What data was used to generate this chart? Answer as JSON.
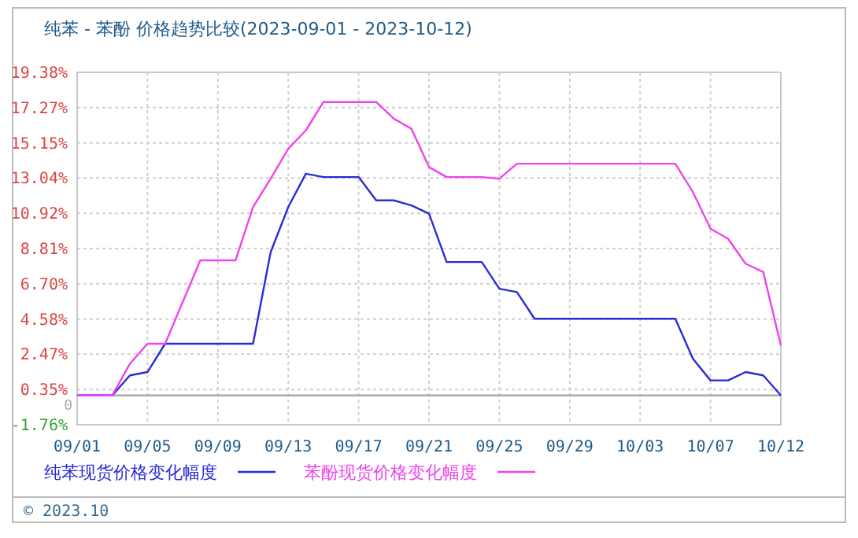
{
  "chart_data": {
    "type": "line",
    "title": "纯苯 - 苯酚 价格趋势比较(2023-09-01 - 2023-10-12)",
    "categories": [
      "09/01",
      null,
      null,
      null,
      "09/05",
      null,
      null,
      null,
      "09/09",
      null,
      null,
      null,
      "09/13",
      null,
      null,
      null,
      "09/17",
      null,
      null,
      null,
      "09/21",
      null,
      null,
      null,
      "09/25",
      null,
      null,
      null,
      "09/29",
      null,
      null,
      null,
      "10/03",
      null,
      null,
      null,
      "10/07",
      null,
      null,
      null,
      "10/12"
    ],
    "series": [
      {
        "name": "纯苯现货价格变化幅度",
        "color": "#2b2bd6",
        "values": [
          0,
          0,
          0,
          1.2,
          1.4,
          3.1,
          3.1,
          3.1,
          3.1,
          3.1,
          3.1,
          8.6,
          11.3,
          13.3,
          13.1,
          13.1,
          13.1,
          11.7,
          11.7,
          11.4,
          10.9,
          8.0,
          8.0,
          8.0,
          6.4,
          6.2,
          4.6,
          4.6,
          4.6,
          4.6,
          4.6,
          4.6,
          4.6,
          4.6,
          4.6,
          2.2,
          0.9,
          0.9,
          1.4,
          1.2,
          0
        ]
      },
      {
        "name": "苯酚现货价格变化幅度",
        "color": "#ee44ee",
        "values": [
          0,
          0,
          0,
          1.9,
          3.1,
          3.1,
          5.6,
          8.1,
          8.1,
          8.1,
          11.3,
          13.0,
          14.8,
          15.9,
          17.6,
          17.6,
          17.6,
          17.6,
          16.6,
          16.0,
          13.7,
          13.1,
          13.1,
          13.1,
          13.0,
          13.9,
          13.9,
          13.9,
          13.9,
          13.9,
          13.9,
          13.9,
          13.9,
          13.9,
          13.9,
          12.2,
          10.0,
          9.4,
          7.9,
          7.4,
          3.0
        ]
      }
    ],
    "ylim": [
      -1.76,
      19.38
    ],
    "yticks": [
      {
        "value": -1.76,
        "label": "-1.76%"
      },
      {
        "value": 0.35,
        "label": "0.35%"
      },
      {
        "value": 2.47,
        "label": "2.47%"
      },
      {
        "value": 4.58,
        "label": "4.58%"
      },
      {
        "value": 6.7,
        "label": "6.70%"
      },
      {
        "value": 8.81,
        "label": "8.81%"
      },
      {
        "value": 10.92,
        "label": "10.92%"
      },
      {
        "value": 13.04,
        "label": "13.04%"
      },
      {
        "value": 15.15,
        "label": "15.15%"
      },
      {
        "value": 17.27,
        "label": "17.27%"
      },
      {
        "value": 19.38,
        "label": "19.38%"
      }
    ],
    "ref_lines": [
      {
        "axis": "y",
        "value": 0,
        "label": "0",
        "color": "#aaaaaa"
      }
    ],
    "grid": true,
    "legend": "bottom",
    "marker": "none",
    "line_style": "solid",
    "annotations": [
      "© 2023.10"
    ]
  }
}
